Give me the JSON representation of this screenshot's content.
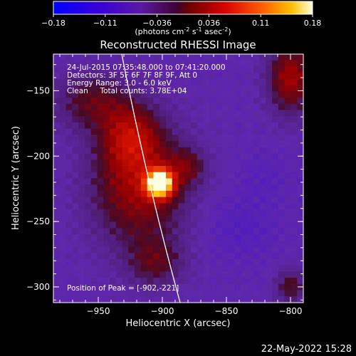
{
  "colorbar": {
    "ticks": [
      "-0.18",
      "-0.11",
      "-0.036",
      "0.036",
      "0.11",
      "0.18"
    ],
    "units_main": "(photons cm",
    "units_sup1": "-2",
    "units_mid": " s",
    "units_sup2": "-1",
    "units_tail": " asec",
    "units_sup3": "-2",
    "units_close": ")"
  },
  "chart_data": {
    "type": "heatmap",
    "title": "Reconstructed RHESSI Image",
    "xlabel": "Heliocentric X (arcsec)",
    "ylabel": "Heliocentric Y (arcsec)",
    "xlim": [
      -985,
      -790
    ],
    "ylim": [
      -312,
      -122
    ],
    "xticks": [
      -950,
      -900,
      -850,
      -800
    ],
    "yticks": [
      -150,
      -200,
      -250,
      -300
    ],
    "xtick_labels": [
      "−950",
      "−900",
      "−850",
      "−800"
    ],
    "ytick_labels": [
      "−150",
      "−200",
      "−250",
      "−300"
    ],
    "colorscale_range": [
      -0.18,
      0.18
    ],
    "peak": {
      "x": -902,
      "y": -221
    },
    "info_lines": [
      "24-Jul-2015 07:35:48.000 to 07:41:20.000",
      "Detectors: 3F 5F 6F 7F 8F 9F, Att 0",
      "Energy Range: 3.0 - 6.0 keV",
      "Clean     Total counts: 3.78E+04"
    ],
    "peak_label": "Position of Peak = [-902,-221]"
  },
  "footer": {
    "timestamp": "22-May-2022 15:28"
  }
}
